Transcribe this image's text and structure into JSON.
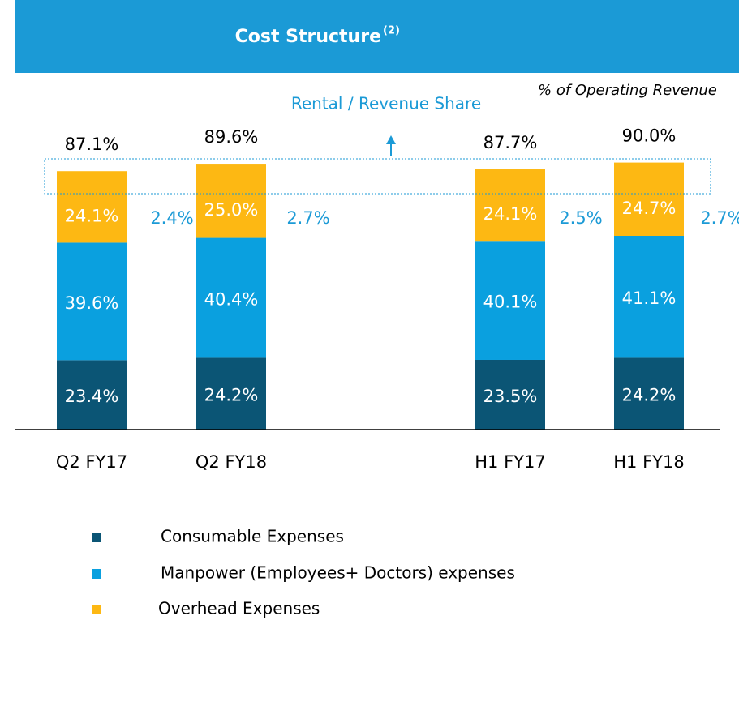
{
  "chart_data": {
    "type": "stacked_bar",
    "title": "Cost Structure",
    "title_superscript": "(2)",
    "subtitle": "% of Operating Revenue",
    "annotation": "Rental / Revenue Share",
    "categories": [
      "Q2 FY17",
      "Q2 FY18",
      "H1 FY17",
      "H1 FY18"
    ],
    "series": [
      {
        "name": "Consumable Expenses",
        "color": "#0b5575",
        "values": [
          23.4,
          24.2,
          23.5,
          24.2
        ],
        "value_labels": [
          "23.4%",
          "24.2%",
          "23.5%",
          "24.2%"
        ]
      },
      {
        "name": "Manpower (Employees+ Doctors) expenses",
        "color": "#0aa0df",
        "values": [
          39.6,
          40.4,
          40.1,
          41.1
        ],
        "value_labels": [
          "39.6%",
          "40.4%",
          "40.1%",
          "41.1%"
        ]
      },
      {
        "name": "Overhead Expenses",
        "color": "#fdb813",
        "values": [
          24.1,
          25.0,
          24.1,
          24.7
        ],
        "value_labels": [
          "24.1%",
          "25.0%",
          "24.1%",
          "24.7%"
        ]
      }
    ],
    "totals": [
      87.1,
      89.6,
      87.7,
      90.0
    ],
    "total_labels": [
      "87.1%",
      "89.6%",
      "87.7%",
      "90.0%"
    ],
    "rental_share": [
      2.4,
      2.7,
      2.5,
      2.7
    ],
    "rental_share_labels": [
      "2.4%",
      "2.7%",
      "2.5%",
      "2.7%"
    ]
  }
}
